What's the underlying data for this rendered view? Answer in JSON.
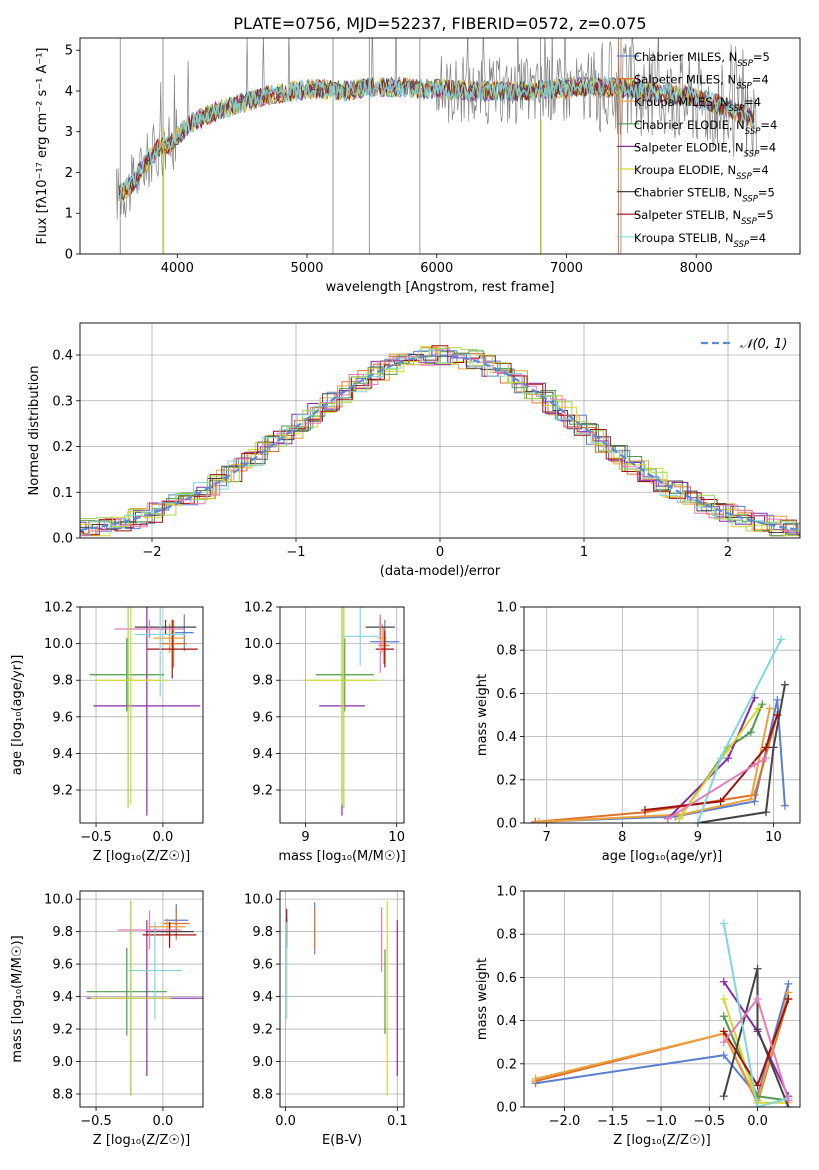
{
  "figure": {
    "title": "PLATE=0756, MJD=52237, FIBERID=0572, z=0.075"
  },
  "colors": {
    "Chabrier MILES": "#5b7fd0",
    "Salpeter MILES": "#e0712b",
    "Kroupa MILES": "#e8a33a",
    "Chabrier ELODIE": "#4f9a4f",
    "Salpeter ELODIE": "#8a2ba6",
    "Kroupa ELODIE": "#d8d82e",
    "Chabrier STELIB": "#444444",
    "Salpeter STELIB": "#a01010",
    "Kroupa STELIB": "#7fd7de",
    "data": "#808080",
    "normal": "#5b8ad6",
    "extra_pink": "#e87ab8",
    "extra_green": "#9fd84a"
  },
  "chart_data": [
    {
      "id": "spectrum",
      "type": "line",
      "xlabel": "wavelength [Angstrom, rest frame]",
      "ylabel": "Flux [fλ10⁻¹⁷ erg cm⁻² s⁻¹ A⁻¹]",
      "xlim": [
        3250,
        8800
      ],
      "ylim": [
        0,
        5.3
      ],
      "xticks": [
        4000,
        5000,
        6000,
        7000,
        8000
      ],
      "yticks": [
        0,
        1,
        2,
        3,
        4,
        5
      ],
      "legend": {
        "placement": "top-right",
        "entries": [
          {
            "name": "Chabrier MILES",
            "nssp": "5"
          },
          {
            "name": "Salpeter MILES",
            "nssp": "4"
          },
          {
            "name": "Kroupa MILES",
            "nssp": "4"
          },
          {
            "name": "Chabrier ELODIE",
            "nssp": "4"
          },
          {
            "name": "Salpeter ELODIE",
            "nssp": "4"
          },
          {
            "name": "Kroupa ELODIE",
            "nssp": "4"
          },
          {
            "name": "Chabrier STELIB",
            "nssp": "5"
          },
          {
            "name": "Salpeter STELIB",
            "nssp": "5"
          },
          {
            "name": "Kroupa STELIB",
            "nssp": "4"
          }
        ]
      },
      "model_continuum": {
        "x": [
          3550,
          3650,
          3750,
          3850,
          3950,
          4100,
          4300,
          4500,
          4700,
          4900,
          5100,
          5300,
          5500,
          5700,
          5900,
          6100,
          6300,
          6500,
          6700,
          6900,
          7100,
          7300,
          7500,
          7700,
          7900,
          8100,
          8300,
          8450
        ],
        "y": [
          1.5,
          1.7,
          2.2,
          2.6,
          2.7,
          3.2,
          3.5,
          3.7,
          3.9,
          4.0,
          4.05,
          4.0,
          4.1,
          4.1,
          4.05,
          4.05,
          4.0,
          4.0,
          4.0,
          4.05,
          4.1,
          4.1,
          4.05,
          3.95,
          3.9,
          3.75,
          3.5,
          3.3
        ]
      }
    },
    {
      "id": "residuals",
      "type": "line",
      "xlabel": "(data-model)/error",
      "ylabel": "Normed distribution",
      "xlim": [
        -2.5,
        2.5
      ],
      "ylim": [
        0,
        0.47
      ],
      "xticks": [
        -2,
        -1,
        0,
        1,
        2
      ],
      "ytick_values": [
        0.0,
        0.1,
        0.2,
        0.3,
        0.4
      ],
      "legend": {
        "placement": "top-right",
        "entries": [
          {
            "name": "𝒩(0, 1)"
          }
        ]
      },
      "normal_curve": {
        "mean": 0,
        "sigma": 1
      }
    },
    {
      "id": "age-vs-Z",
      "type": "scatter",
      "xlabel": "Z [log₁₀(Z/Z☉)]",
      "ylabel": "age  [log₁₀(age/yr)]",
      "xlim": [
        -0.62,
        0.3
      ],
      "ylim": [
        9.02,
        10.2
      ],
      "xticks": [
        -0.5,
        0.0
      ],
      "yticks": [
        9.2,
        9.4,
        9.6,
        9.8,
        10.0,
        10.2
      ]
    },
    {
      "id": "age-vs-mass",
      "type": "scatter",
      "xlabel": "mass [log₁₀(M/M☉)]",
      "xlim": [
        8.72,
        10.08
      ],
      "ylim": [
        9.02,
        10.2
      ],
      "xticks": [
        9,
        10
      ],
      "yticks": [
        9.2,
        9.4,
        9.6,
        9.8,
        10.0,
        10.2
      ]
    },
    {
      "id": "weight-vs-age",
      "type": "line",
      "xlabel": "age  [log₁₀(age/yr)]",
      "ylabel": "mass weight",
      "xlim": [
        6.7,
        10.35
      ],
      "ylim": [
        0,
        1.0
      ],
      "xticks": [
        7,
        8,
        9,
        10
      ],
      "yticks": [
        0.0,
        0.2,
        0.4,
        0.6,
        0.8,
        1.0
      ]
    },
    {
      "id": "mass-vs-Z",
      "type": "scatter",
      "xlabel": "Z [log₁₀(Z/Z☉)]",
      "ylabel": "mass [log₁₀(M/M☉)]",
      "xlim": [
        -0.62,
        0.3
      ],
      "ylim": [
        8.72,
        10.05
      ],
      "xticks": [
        -0.5,
        0.0
      ],
      "yticks": [
        8.8,
        9.0,
        9.2,
        9.4,
        9.6,
        9.8,
        10.0
      ]
    },
    {
      "id": "mass-vs-EBV",
      "type": "scatter",
      "xlabel": "E(B-V)",
      "xlim": [
        -0.005,
        0.106
      ],
      "ylim": [
        8.72,
        10.05
      ],
      "xticks": [
        0.0,
        0.1
      ],
      "yticks": [
        8.8,
        9.0,
        9.2,
        9.4,
        9.6,
        9.8,
        10.0
      ]
    },
    {
      "id": "weight-vs-Z",
      "type": "line",
      "xlabel": "Z [log₁₀(Z/Z☉)]",
      "ylabel": "mass weight",
      "xlim": [
        -2.42,
        0.44
      ],
      "ylim": [
        0,
        1.0
      ],
      "xticks": [
        -2.0,
        -1.5,
        -1.0,
        -0.5,
        0.0
      ],
      "yticks": [
        0.0,
        0.2,
        0.4,
        0.6,
        0.8,
        1.0
      ]
    }
  ],
  "errorbars": {
    "age_Z": [
      {
        "c": "Chabrier MILES",
        "x": 0.16,
        "xe": 0.07,
        "y": 10.06,
        "ye": 0.1
      },
      {
        "c": "Salpeter MILES",
        "x": 0.08,
        "xe": 0.1,
        "y": 10.0,
        "ye": 0.13
      },
      {
        "c": "Kroupa MILES",
        "x": 0.05,
        "xe": 0.12,
        "y": 10.03,
        "ye": 0.08
      },
      {
        "c": "Chabrier ELODIE",
        "x": -0.27,
        "xe": 0.28,
        "y": 9.83,
        "ye": 0.2
      },
      {
        "c": "Salpeter ELODIE",
        "x": -0.12,
        "xe": 0.4,
        "y": 9.66,
        "ye": 0.6
      },
      {
        "c": "Kroupa ELODIE",
        "x": -0.24,
        "xe": 0.27,
        "y": 9.8,
        "ye": 0.68
      },
      {
        "c": "Chabrier STELIB",
        "x": 0.02,
        "xe": 0.23,
        "y": 10.09,
        "ye": 0.04
      },
      {
        "c": "Salpeter STELIB",
        "x": 0.07,
        "xe": 0.19,
        "y": 9.97,
        "ye": 0.16
      },
      {
        "c": "Kroupa STELIB",
        "x": -0.02,
        "xe": 0.19,
        "y": 10.05,
        "ye": 0.34
      },
      {
        "c": "extra_pink",
        "x": -0.1,
        "xe": 0.26,
        "y": 10.08,
        "ye": 0.05
      },
      {
        "c": "extra_green",
        "x": -0.26,
        "xe": 0.01,
        "y": 9.8,
        "ye": 0.7
      }
    ],
    "age_mass": [
      {
        "c": "Chabrier MILES",
        "x": 9.87,
        "xe": 0.16,
        "y": 10.01,
        "ye": 0.12
      },
      {
        "c": "Salpeter MILES",
        "x": 9.86,
        "xe": 0.06,
        "y": 9.99,
        "ye": 0.1
      },
      {
        "c": "Kroupa MILES",
        "x": 9.84,
        "xe": 0.05,
        "y": 10.03,
        "ye": 0.08
      },
      {
        "c": "Chabrier ELODIE",
        "x": 9.43,
        "xe": 0.32,
        "y": 9.83,
        "ye": 0.2
      },
      {
        "c": "Salpeter ELODIE",
        "x": 9.4,
        "xe": 0.25,
        "y": 9.66,
        "ye": 0.6
      },
      {
        "c": "Kroupa ELODIE",
        "x": 9.4,
        "xe": 0.4,
        "y": 9.8,
        "ye": 0.68
      },
      {
        "c": "Chabrier STELIB",
        "x": 9.82,
        "xe": 0.16,
        "y": 10.09,
        "ye": 0.05
      },
      {
        "c": "Salpeter STELIB",
        "x": 9.87,
        "xe": 0.1,
        "y": 9.97,
        "ye": 0.1
      },
      {
        "c": "Kroupa STELIB",
        "x": 9.6,
        "xe": 0.2,
        "y": 10.04,
        "ye": 0.16
      },
      {
        "c": "extra_pink",
        "x": 9.82,
        "xe": 0.02,
        "y": 10.0,
        "ye": 0.16
      },
      {
        "c": "extra_green",
        "x": 9.42,
        "xe": 0.02,
        "y": 9.8,
        "ye": 0.7
      }
    ],
    "mass_Z": [
      {
        "c": "Chabrier MILES",
        "x": 0.1,
        "xe": 0.09,
        "y": 9.87,
        "ye": 0.1
      },
      {
        "c": "Salpeter MILES",
        "x": 0.1,
        "xe": 0.1,
        "y": 9.85,
        "ye": 0.1
      },
      {
        "c": "Kroupa MILES",
        "x": 0.03,
        "xe": 0.14,
        "y": 9.83,
        "ye": 0.05
      },
      {
        "c": "Chabrier ELODIE",
        "x": -0.27,
        "xe": 0.3,
        "y": 9.43,
        "ye": 0.27
      },
      {
        "c": "Salpeter ELODIE",
        "x": -0.12,
        "xe": 0.45,
        "y": 9.39,
        "ye": 0.48
      },
      {
        "c": "Kroupa ELODIE",
        "x": -0.24,
        "xe": 0.3,
        "y": 9.39,
        "ye": 0.6
      },
      {
        "c": "Chabrier STELIB",
        "x": 0.05,
        "xe": 0.18,
        "y": 9.8,
        "ye": 0.05
      },
      {
        "c": "Salpeter STELIB",
        "x": 0.05,
        "xe": 0.2,
        "y": 9.78,
        "ye": 0.08
      },
      {
        "c": "Kroupa STELIB",
        "x": -0.06,
        "xe": 0.2,
        "y": 9.56,
        "ye": 0.3
      },
      {
        "c": "extra_pink",
        "x": -0.1,
        "xe": 0.24,
        "y": 9.81,
        "ye": 0.12
      },
      {
        "c": "extra_green",
        "x": -0.24,
        "xe": 0.01,
        "y": 9.39,
        "ye": 0.6
      }
    ],
    "mass_EBV": [
      {
        "c": "Chabrier MILES",
        "x": 0.026,
        "y": 9.82,
        "ye": 0.16
      },
      {
        "c": "Salpeter MILES",
        "x": 0.026,
        "y": 9.82,
        "ye": 0.13
      },
      {
        "c": "Chabrier ELODIE",
        "x": 0.089,
        "y": 9.43,
        "ye": 0.26
      },
      {
        "c": "Salpeter ELODIE",
        "x": 0.1,
        "y": 9.39,
        "ye": 0.48
      },
      {
        "c": "Kroupa ELODIE",
        "x": 0.091,
        "y": 9.39,
        "ye": 0.6
      },
      {
        "c": "Chabrier STELIB",
        "x": 0.001,
        "y": 9.8,
        "ye": 0.08
      },
      {
        "c": "Salpeter STELIB",
        "x": 0.001,
        "y": 9.82,
        "ye": 0.12
      },
      {
        "c": "Kroupa STELIB",
        "x": 0.001,
        "y": 9.56,
        "ye": 0.3
      },
      {
        "c": "extra_pink",
        "x": 0.086,
        "y": 9.75,
        "ye": 0.2
      }
    ]
  },
  "weights": {
    "by_age": [
      {
        "c": "Chabrier MILES",
        "pts": [
          [
            6.85,
            0.005
          ],
          [
            8.7,
            0.03
          ],
          [
            9.75,
            0.1
          ],
          [
            10.05,
            0.57
          ],
          [
            10.15,
            0.08
          ]
        ]
      },
      {
        "c": "Salpeter MILES",
        "pts": [
          [
            6.85,
            0.005
          ],
          [
            8.3,
            0.05
          ],
          [
            9.75,
            0.13
          ],
          [
            10.05,
            0.5
          ]
        ]
      },
      {
        "c": "Kroupa MILES",
        "pts": [
          [
            6.9,
            0.005
          ],
          [
            8.8,
            0.04
          ],
          [
            9.7,
            0.11
          ],
          [
            9.95,
            0.53
          ]
        ]
      },
      {
        "c": "Chabrier ELODIE",
        "pts": [
          [
            8.75,
            0.02
          ],
          [
            9.4,
            0.35
          ],
          [
            9.7,
            0.42
          ],
          [
            9.85,
            0.55
          ]
        ]
      },
      {
        "c": "Salpeter ELODIE",
        "pts": [
          [
            8.6,
            0.02
          ],
          [
            9.4,
            0.3
          ],
          [
            9.75,
            0.58
          ]
        ]
      },
      {
        "c": "Kroupa ELODIE",
        "pts": [
          [
            8.75,
            0.02
          ],
          [
            9.4,
            0.34
          ],
          [
            9.8,
            0.53
          ]
        ]
      },
      {
        "c": "Chabrier STELIB",
        "pts": [
          [
            9.0,
            0.0
          ],
          [
            9.9,
            0.05
          ],
          [
            10.0,
            0.35
          ],
          [
            10.15,
            0.64
          ]
        ]
      },
      {
        "c": "Salpeter STELIB",
        "pts": [
          [
            8.3,
            0.06
          ],
          [
            9.3,
            0.1
          ],
          [
            9.9,
            0.35
          ],
          [
            10.05,
            0.5
          ]
        ]
      },
      {
        "c": "Kroupa STELIB",
        "pts": [
          [
            9.0,
            0.0
          ],
          [
            9.3,
            0.3
          ],
          [
            10.1,
            0.85
          ]
        ]
      },
      {
        "c": "extra_pink",
        "pts": [
          [
            8.6,
            0.02
          ],
          [
            9.75,
            0.27
          ],
          [
            9.9,
            0.3
          ]
        ]
      }
    ],
    "by_Z": [
      {
        "c": "Chabrier MILES",
        "pts": [
          [
            -2.3,
            0.11
          ],
          [
            -0.35,
            0.24
          ],
          [
            0.0,
            0.05
          ],
          [
            0.32,
            0.57
          ]
        ]
      },
      {
        "c": "Salpeter MILES",
        "pts": [
          [
            -2.3,
            0.12
          ],
          [
            -0.35,
            0.34
          ],
          [
            0.0,
            0.02
          ],
          [
            0.32,
            0.5
          ]
        ]
      },
      {
        "c": "Kroupa MILES",
        "pts": [
          [
            -2.3,
            0.13
          ],
          [
            -0.35,
            0.34
          ],
          [
            0.0,
            0.03
          ],
          [
            0.32,
            0.53
          ]
        ]
      },
      {
        "c": "Chabrier ELODIE",
        "pts": [
          [
            -0.35,
            0.42
          ],
          [
            0.0,
            0.05
          ],
          [
            0.32,
            0.03
          ]
        ]
      },
      {
        "c": "Salpeter ELODIE",
        "pts": [
          [
            -0.35,
            0.58
          ],
          [
            0.0,
            0.35
          ],
          [
            0.32,
            0.05
          ]
        ]
      },
      {
        "c": "Kroupa ELODIE",
        "pts": [
          [
            -0.35,
            0.5
          ],
          [
            0.0,
            0.02
          ],
          [
            0.32,
            0.02
          ]
        ]
      },
      {
        "c": "Chabrier STELIB",
        "pts": [
          [
            -0.35,
            0.05
          ],
          [
            0.0,
            0.64
          ],
          [
            0.0,
            0.36
          ],
          [
            0.32,
            0.0
          ]
        ]
      },
      {
        "c": "Salpeter STELIB",
        "pts": [
          [
            -0.35,
            0.35
          ],
          [
            0.0,
            0.1
          ],
          [
            0.32,
            0.5
          ]
        ]
      },
      {
        "c": "Kroupa STELIB",
        "pts": [
          [
            -0.35,
            0.85
          ],
          [
            0.0,
            0.0
          ],
          [
            0.32,
            0.04
          ]
        ]
      },
      {
        "c": "extra_pink",
        "pts": [
          [
            -0.35,
            0.3
          ],
          [
            0.0,
            0.5
          ],
          [
            0.32,
            0.03
          ]
        ]
      }
    ]
  }
}
